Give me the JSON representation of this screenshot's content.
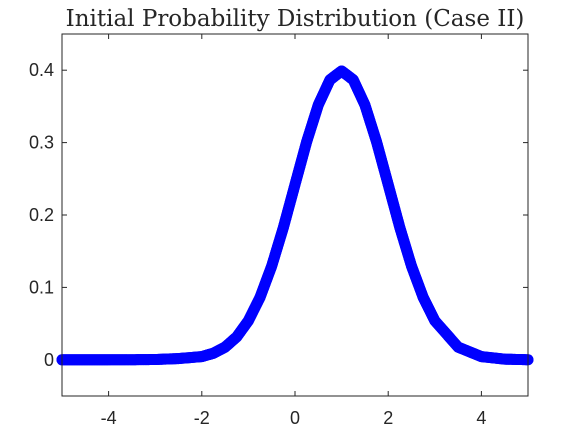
{
  "chart_data": {
    "type": "line",
    "title": "Initial Probability Distribution (Case II)",
    "xlabel": "",
    "ylabel": "",
    "xlim": [
      -5,
      5
    ],
    "ylim": [
      -0.05,
      0.45
    ],
    "grid": false,
    "x_ticks": [
      -4,
      -2,
      0,
      2,
      4
    ],
    "x_tick_labels": [
      "-4",
      "-2",
      "0",
      "2",
      "4"
    ],
    "y_ticks": [
      0,
      0.1,
      0.2,
      0.3,
      0.4
    ],
    "y_tick_labels": [
      "0",
      "0.1",
      "0.2",
      "0.3",
      "0.4"
    ],
    "series": [
      {
        "color": "#0000ff",
        "marker": "filled-circle",
        "x": [
          -5,
          -4.5,
          -4,
          -3.5,
          -3,
          -2.5,
          -2,
          -1.75,
          -1.5,
          -1.25,
          -1,
          -0.75,
          -0.5,
          -0.25,
          0,
          0.25,
          0.5,
          0.75,
          1,
          1.25,
          1.5,
          1.75,
          2,
          2.25,
          2.5,
          2.75,
          3,
          3.5,
          4,
          4.5,
          5
        ],
        "y": [
          0.0,
          0.0,
          0.0,
          0.0001,
          0.0004,
          0.0017,
          0.0044,
          0.0091,
          0.0175,
          0.0317,
          0.054,
          0.0863,
          0.1295,
          0.1826,
          0.242,
          0.3011,
          0.3521,
          0.3867,
          0.3989,
          0.3867,
          0.3521,
          0.3011,
          0.242,
          0.1826,
          0.1295,
          0.0863,
          0.054,
          0.0175,
          0.0044,
          0.0009,
          0.0001
        ]
      }
    ]
  }
}
